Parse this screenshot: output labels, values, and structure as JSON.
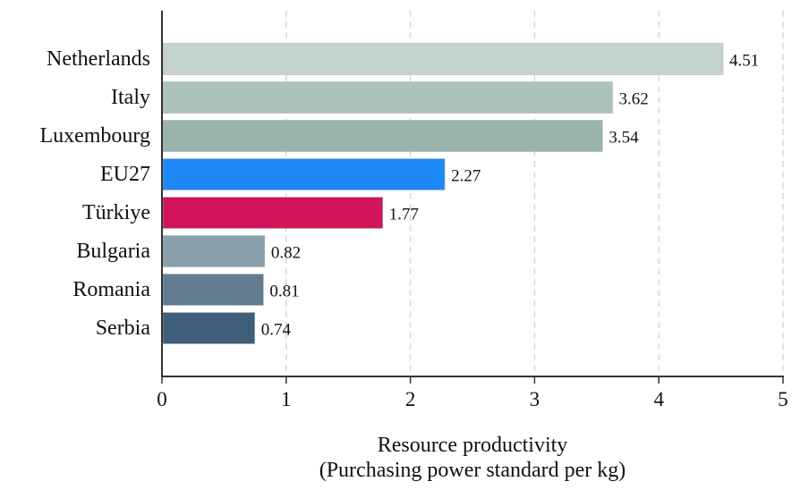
{
  "chart_data": {
    "type": "bar",
    "orientation": "horizontal",
    "categories": [
      "Netherlands",
      "Italy",
      "Luxembourg",
      "EU27",
      "Türkiye",
      "Bulgaria",
      "Romania",
      "Serbia"
    ],
    "values": [
      4.51,
      3.62,
      3.54,
      2.27,
      1.77,
      0.82,
      0.81,
      0.74
    ],
    "value_labels": [
      "4.51",
      "3.62",
      "3.54",
      "2.27",
      "1.77",
      "0.82",
      "0.81",
      "0.74"
    ],
    "bar_colors": [
      "#c5d3d0",
      "#adc2bd",
      "#98b4ad",
      "#1e88f7",
      "#d4145a",
      "#8aa0ad",
      "#627d90",
      "#3f5e7a"
    ],
    "title": "",
    "xlabel_line1": "Resource productivity",
    "xlabel_line2": "(Purchasing power standard per kg)",
    "ylabel": "",
    "xlim": [
      0,
      5
    ],
    "xticks": [
      0,
      1,
      2,
      3,
      4,
      5
    ],
    "xtick_labels": [
      "0",
      "1",
      "2",
      "3",
      "4",
      "5"
    ],
    "grid": "vertical dashed",
    "legend": "none"
  }
}
